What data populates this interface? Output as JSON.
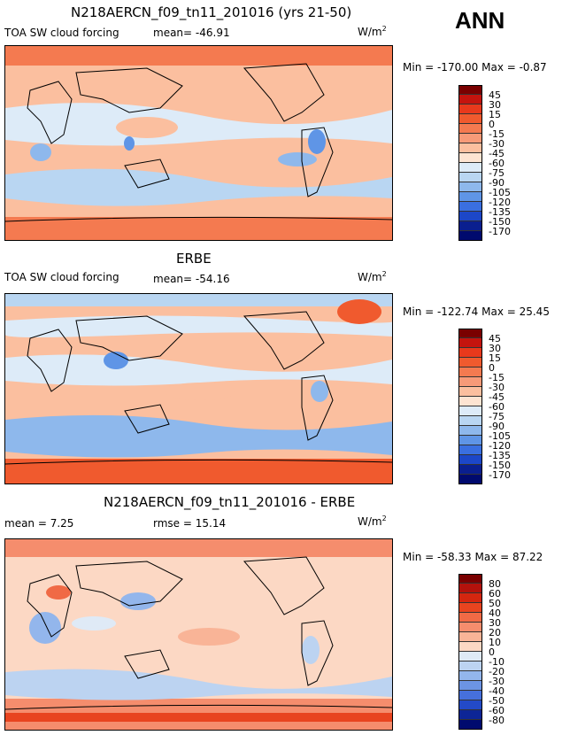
{
  "season": "ANN",
  "panels": [
    {
      "title": "N218AERCN_f09_tn11_201016 (yrs 21-50)",
      "left_label": "TOA SW cloud forcing",
      "stat1": "mean= -46.91",
      "stat2": "",
      "units": "W/m",
      "units_sup": "2",
      "minmax": "Min = -170.00 Max =  -0.87",
      "palette": "abs",
      "levels": [
        "45",
        "30",
        "15",
        "0",
        "-15",
        "-30",
        "-45",
        "-60",
        "-75",
        "-90",
        "-105",
        "-120",
        "-135",
        "-150",
        "-170"
      ]
    },
    {
      "title": "ERBE",
      "left_label": "TOA SW cloud forcing",
      "stat1": "mean= -54.16",
      "stat2": "",
      "units": "W/m",
      "units_sup": "2",
      "minmax": "Min = -122.74 Max =  25.45",
      "palette": "abs",
      "levels": [
        "45",
        "30",
        "15",
        "0",
        "-15",
        "-30",
        "-45",
        "-60",
        "-75",
        "-90",
        "-105",
        "-120",
        "-135",
        "-150",
        "-170"
      ]
    },
    {
      "title": "N218AERCN_f09_tn11_201016 - ERBE",
      "left_label": "mean =   7.25",
      "stat1": "",
      "stat2": "rmse =  15.14",
      "units": "W/m",
      "units_sup": "2",
      "minmax": "Min = -58.33 Max =  87.22",
      "palette": "diff",
      "levels": [
        "80",
        "60",
        "50",
        "40",
        "30",
        "20",
        "10",
        "0",
        "-10",
        "-20",
        "-30",
        "-40",
        "-50",
        "-60",
        "-80"
      ]
    }
  ],
  "colors": {
    "abs": [
      "#7a0000",
      "#c4140e",
      "#e8391c",
      "#f05a2e",
      "#f47a50",
      "#f79a78",
      "#fbbf9f",
      "#fde4d2",
      "#ddebf8",
      "#b9d6f2",
      "#8eb8ec",
      "#5f95e6",
      "#3a6fe0",
      "#1c47c8",
      "#0a1f8f",
      "#000a6e"
    ],
    "diff": [
      "#7a0000",
      "#b3120c",
      "#d4260f",
      "#e8441f",
      "#f06a45",
      "#f58d6d",
      "#f9b497",
      "#fcd8c4",
      "#dfeaf6",
      "#bcd3f1",
      "#93b6ec",
      "#6c94e4",
      "#4670dc",
      "#234ac7",
      "#0d2596",
      "#000a6e"
    ]
  }
}
